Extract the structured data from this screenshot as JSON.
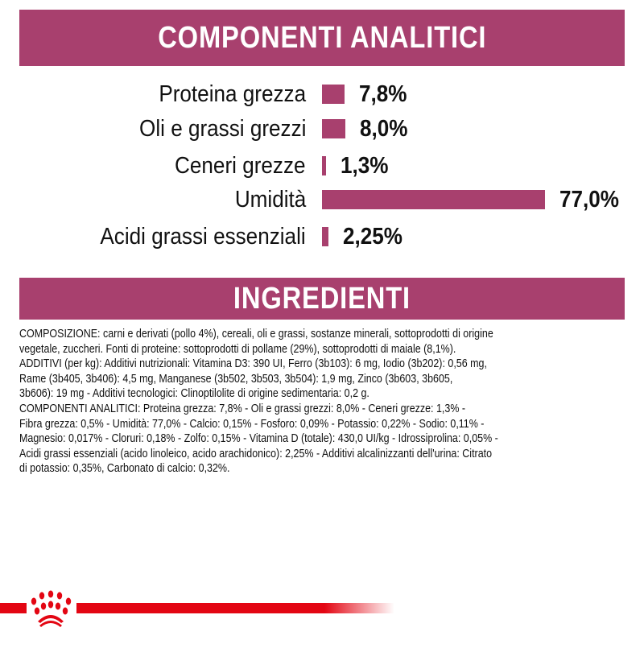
{
  "header": {
    "title": "COMPONENTI ANALITICI"
  },
  "analytics": {
    "bar_color": "#a8406e",
    "max_value": 77.0,
    "rows": [
      {
        "label": "Proteina grezza",
        "value": 7.8,
        "display": "7,8%"
      },
      {
        "label": "Oli e grassi grezzi",
        "value": 8.0,
        "display": "8,0%"
      },
      {
        "label": "Ceneri grezze",
        "value": 1.3,
        "display": "1,3%"
      },
      {
        "label": "Umidità",
        "value": 77.0,
        "display": "77,0%"
      },
      {
        "label": "Acidi grassi essenziali",
        "value": 2.25,
        "display": "2,25%"
      }
    ]
  },
  "ingredients": {
    "title": "INGREDIENTI",
    "lines": [
      "COMPOSIZIONE: carni e derivati (pollo 4%), cereali, oli e grassi, sostanze minerali, sottoprodotti di origine",
      "vegetale, zuccheri. Fonti di proteine: sottoprodotti di pollame (29%), sottoprodotti di maiale (8,1%).",
      "ADDITIVI (per kg): Additivi nutrizionali: Vitamina D3: 390 UI, Ferro (3b103): 6 mg, Iodio (3b202): 0,56 mg,",
      "Rame (3b405, 3b406): 4,5 mg, Manganese (3b502, 3b503, 3b504): 1,9 mg, Zinco (3b603, 3b605,",
      "3b606): 19 mg - Additivi tecnologici: Clinoptilolite di origine sedimentaria: 0,2 g.",
      "COMPONENTI ANALITICI: Proteina grezza: 7,8% - Oli e grassi grezzi: 8,0% - Ceneri grezze: 1,3% -",
      "Fibra grezza: 0,5% - Umidità: 77,0% - Calcio: 0,15% - Fosforo: 0,09% - Potassio: 0,22% - Sodio: 0,11% -",
      "Magnesio: 0,017% - Cloruri: 0,18% - Zolfo: 0,15% - Vitamina D (totale): 430,0 UI/kg - Idrossiprolina: 0,05% -",
      "Acidi grassi essenziali (acido linoleico, acido arachidonico): 2,25% - Additivi alcalinizzanti dell'urina: Citrato",
      "di potassio: 0,35%, Carbonato di calcio: 0,32%."
    ]
  },
  "footer": {
    "logo": "royal-canin-crown-logo",
    "brand_color": "#e30613"
  }
}
